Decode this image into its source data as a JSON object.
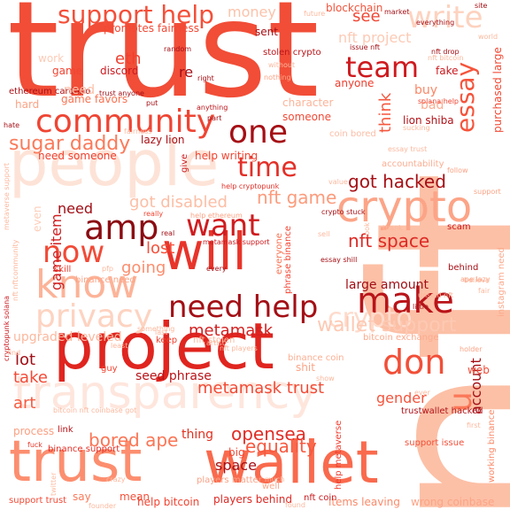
{
  "words": [
    {
      "text": "nft",
      "color": "#fcc0a6",
      "size": 300
    },
    {
      "text": "trust",
      "color": "#f14d37",
      "size": 150
    },
    {
      "text": "people",
      "color": "#fde3d7",
      "size": 70
    },
    {
      "text": "project",
      "color": "#e0251f",
      "size": 72
    },
    {
      "text": "trust",
      "color": "#fc8e6f",
      "size": 64
    },
    {
      "text": "wallet",
      "color": "#f96a4d",
      "size": 66
    },
    {
      "text": "transparency",
      "color": "#fee6dd",
      "size": 52
    },
    {
      "text": "will",
      "color": "#e8342a",
      "size": 58
    },
    {
      "text": "crypto",
      "color": "#fca487",
      "size": 48
    },
    {
      "text": "community",
      "color": "#ef4533",
      "size": 36
    },
    {
      "text": "know",
      "color": "#fcb398",
      "size": 44
    },
    {
      "text": "privacy",
      "color": "#fdd3c1",
      "size": 36
    },
    {
      "text": "make",
      "color": "#b91419",
      "size": 40
    },
    {
      "text": "need help",
      "color": "#a30f15",
      "size": 34
    },
    {
      "text": "amp",
      "color": "#8b0b12",
      "size": 38
    },
    {
      "text": "want",
      "color": "#cf1c1f",
      "size": 34
    },
    {
      "text": "now",
      "color": "#f24a36",
      "size": 34
    },
    {
      "text": "one",
      "color": "#a50f15",
      "size": 36
    },
    {
      "text": "time",
      "color": "#e32f27",
      "size": 30
    },
    {
      "text": "support help",
      "color": "#f44f39",
      "size": 28
    },
    {
      "text": "write",
      "color": "#fdd2bf",
      "size": 34
    },
    {
      "text": "team",
      "color": "#ce1a1e",
      "size": 32
    },
    {
      "text": "essay",
      "color": "#f5543c",
      "size": 28
    },
    {
      "text": "don",
      "color": "#f24f38",
      "size": 38
    },
    {
      "text": "u",
      "color": "#fb7858",
      "size": 36
    },
    {
      "text": "sugar daddy",
      "color": "#fb7a5a",
      "size": 22
    },
    {
      "text": "crypto",
      "color": "#fedbcc",
      "size": 30
    },
    {
      "text": "blockchain",
      "color": "#f4533b",
      "size": 12
    },
    {
      "text": "got hacked",
      "color": "#a60f15",
      "size": 20
    },
    {
      "text": "nft game",
      "color": "#fc9b7c",
      "size": 20
    },
    {
      "text": "nft space",
      "color": "#dd2a25",
      "size": 20
    },
    {
      "text": "got disabled",
      "color": "#fcbea5",
      "size": 18
    },
    {
      "text": "wallet support",
      "color": "#fdc9b3",
      "size": 22
    },
    {
      "text": "metamask",
      "color": "#d42121",
      "size": 18
    },
    {
      "text": "opensea",
      "color": "#e12d26",
      "size": 20
    },
    {
      "text": "equality",
      "color": "#f7593f",
      "size": 20
    },
    {
      "text": "bored ape",
      "color": "#fb7555",
      "size": 20
    },
    {
      "text": "metamask trust",
      "color": "#f24a35",
      "size": 18
    },
    {
      "text": "large amount",
      "color": "#a10e15",
      "size": 14
    },
    {
      "text": "lost",
      "color": "#f4503a",
      "size": 18
    },
    {
      "text": "going",
      "color": "#fc8d6d",
      "size": 18
    },
    {
      "text": "need",
      "color": "#a10e15",
      "size": 16
    },
    {
      "text": "game item",
      "color": "#d01d1f",
      "size": 16
    },
    {
      "text": "lot",
      "color": "#a10e15",
      "size": 18
    },
    {
      "text": "take",
      "color": "#f24a36",
      "size": 18
    },
    {
      "text": "art",
      "color": "#f7593f",
      "size": 18
    },
    {
      "text": "seed phrase",
      "color": "#b81419",
      "size": 14
    },
    {
      "text": "upgraded leveled",
      "color": "#fcb89e",
      "size": 14
    },
    {
      "text": "thing",
      "color": "#e2301f",
      "size": 14
    },
    {
      "text": "space",
      "color": "#a50f15",
      "size": 16
    },
    {
      "text": "gender",
      "color": "#f4543c",
      "size": 16
    },
    {
      "text": "account",
      "color": "#a30f15",
      "size": 16
    },
    {
      "text": "think",
      "color": "#f5573e",
      "size": 18
    },
    {
      "text": "see",
      "color": "#f14633",
      "size": 18
    },
    {
      "text": "money",
      "color": "#fcc2a9",
      "size": 16
    },
    {
      "text": "buy",
      "color": "#fc8767",
      "size": 14
    },
    {
      "text": "bad",
      "color": "#fcad91",
      "size": 14
    },
    {
      "text": "eth",
      "color": "#f0402f",
      "size": 18
    },
    {
      "text": "re",
      "color": "#a30f15",
      "size": 16
    },
    {
      "text": "nft project",
      "color": "#fdcab5",
      "size": 16
    },
    {
      "text": "promotes fairness",
      "color": "#f34935",
      "size": 12
    },
    {
      "text": "game",
      "color": "#f14432",
      "size": 12
    },
    {
      "text": "discord",
      "color": "#cc191e",
      "size": 12
    },
    {
      "text": "game favors",
      "color": "#fb7353",
      "size": 12
    },
    {
      "text": "need someone",
      "color": "#f0402f",
      "size": 12
    },
    {
      "text": "lazy lion",
      "color": "#a81016",
      "size": 12
    },
    {
      "text": "help writing",
      "color": "#f14633",
      "size": 12
    },
    {
      "text": "lion shiba",
      "color": "#b11218",
      "size": 12
    },
    {
      "text": "ethereum cardano",
      "color": "#ad1117",
      "size": 10
    },
    {
      "text": "hard",
      "color": "#fca486",
      "size": 12
    },
    {
      "text": "need",
      "color": "#fcbfa7",
      "size": 14
    },
    {
      "text": "work",
      "color": "#fdcbb6",
      "size": 12
    },
    {
      "text": "stolen crypto",
      "color": "#bd151a",
      "size": 10
    },
    {
      "text": "sent",
      "color": "#a50f15",
      "size": 12
    },
    {
      "text": "fake",
      "color": "#cc191e",
      "size": 12
    },
    {
      "text": "anyone",
      "color": "#ef3c2c",
      "size": 12
    },
    {
      "text": "coin bored",
      "color": "#fcbda4",
      "size": 10
    },
    {
      "text": "character",
      "color": "#fcb499",
      "size": 12
    },
    {
      "text": "someone",
      "color": "#f34a36",
      "size": 12
    },
    {
      "text": "purchased large",
      "color": "#f24a35",
      "size": 12
    },
    {
      "text": "instagram need",
      "color": "#fca98c",
      "size": 10
    },
    {
      "text": "skill",
      "color": "#ea372a",
      "size": 10
    },
    {
      "text": "scam",
      "color": "#cb181d",
      "size": 10
    },
    {
      "text": "behind",
      "color": "#a50f15",
      "size": 10
    },
    {
      "text": "web",
      "color": "#f34935",
      "size": 12
    },
    {
      "text": "trustwallet hacked",
      "color": "#b21218",
      "size": 10
    },
    {
      "text": "support issue",
      "color": "#f44f39",
      "size": 10
    },
    {
      "text": "working binance",
      "color": "#fc8a6a",
      "size": 10
    },
    {
      "text": "wrong coinbase",
      "color": "#fca486",
      "size": 12
    },
    {
      "text": "items leaving",
      "color": "#fc8a6a",
      "size": 12
    },
    {
      "text": "nft coin",
      "color": "#c9181d",
      "size": 10
    },
    {
      "text": "players behind",
      "color": "#dc2924",
      "size": 12
    },
    {
      "text": "help bitcoin",
      "color": "#f14432",
      "size": 12
    },
    {
      "text": "mean",
      "color": "#f4503a",
      "size": 12
    },
    {
      "text": "say",
      "color": "#fb7b5b",
      "size": 12
    },
    {
      "text": "support trust",
      "color": "#f34935",
      "size": 10
    },
    {
      "text": "binance support",
      "color": "#e32f27",
      "size": 10
    },
    {
      "text": "process",
      "color": "#fca082",
      "size": 12
    },
    {
      "text": "link",
      "color": "#b91419",
      "size": 10
    },
    {
      "text": "fuck",
      "color": "#e93529",
      "size": 8
    },
    {
      "text": "big",
      "color": "#f24a35",
      "size": 12
    },
    {
      "text": "players matter",
      "color": "#fca285",
      "size": 10
    },
    {
      "text": "well",
      "color": "#fca78b",
      "size": 10
    },
    {
      "text": "help metaverse",
      "color": "#ee3a2c",
      "size": 10
    },
    {
      "text": "everyone",
      "color": "#fb7151",
      "size": 10
    },
    {
      "text": "phrase binance",
      "color": "#f14432",
      "size": 10
    },
    {
      "text": "binance coin",
      "color": "#fcae92",
      "size": 10
    },
    {
      "text": "bitcoin exchange",
      "color": "#fcaa8d",
      "size": 10
    },
    {
      "text": "keep",
      "color": "#f0402f",
      "size": 10
    },
    {
      "text": "help ethereum",
      "color": "#fca486",
      "size": 8
    },
    {
      "text": "help cryptopunk",
      "color": "#e33028",
      "size": 8
    },
    {
      "text": "crypto stuck",
      "color": "#a91016",
      "size": 8
    },
    {
      "text": "really",
      "color": "#f14432",
      "size": 8
    },
    {
      "text": "metamask support",
      "color": "#cc191e",
      "size": 8
    },
    {
      "text": "guy",
      "color": "#f14432",
      "size": 10
    },
    {
      "text": "shit",
      "color": "#fca486",
      "size": 12
    },
    {
      "text": "binance need",
      "color": "#fca486",
      "size": 10
    },
    {
      "text": "nft stolen",
      "color": "#fcbba1",
      "size": 10
    },
    {
      "text": "accountability",
      "color": "#fcae92",
      "size": 10
    },
    {
      "text": "value",
      "color": "#fcb89e",
      "size": 8
    },
    {
      "text": "give",
      "color": "#cb181d",
      "size": 10
    },
    {
      "text": "even",
      "color": "#fdcdb9",
      "size": 12
    },
    {
      "text": "right",
      "color": "#a50f15",
      "size": 8
    },
    {
      "text": "put",
      "color": "#a50f15",
      "size": 8
    },
    {
      "text": "anything",
      "color": "#bb141a",
      "size": 8
    },
    {
      "text": "issue nft",
      "color": "#a50f15",
      "size": 8
    },
    {
      "text": "solana help",
      "color": "#f14432",
      "size": 8
    },
    {
      "text": "everything",
      "color": "#a50f15",
      "size": 8
    },
    {
      "text": "random",
      "color": "#a50f15",
      "size": 8
    },
    {
      "text": "trust anyone",
      "color": "#a30f15",
      "size": 8
    },
    {
      "text": "unsold nft",
      "color": "#fcb89e",
      "size": 8
    },
    {
      "text": "little",
      "color": "#a50f15",
      "size": 8
    },
    {
      "text": "support",
      "color": "#fca486",
      "size": 8
    },
    {
      "text": "artist",
      "color": "#fcb89e",
      "size": 8
    },
    {
      "text": "nft players",
      "color": "#fcb89e",
      "size": 8
    },
    {
      "text": "cryptopunk solana",
      "color": "#cb181d",
      "size": 8
    },
    {
      "text": "nft nftcommunity",
      "color": "#fcb89e",
      "size": 8
    },
    {
      "text": "metaverse support",
      "color": "#fcb89e",
      "size": 8
    },
    {
      "text": "hate",
      "color": "#a50f15",
      "size": 8
    },
    {
      "text": "nothing",
      "color": "#fca486",
      "size": 8
    },
    {
      "text": "ape lazy",
      "color": "#fca486",
      "size": 8
    },
    {
      "text": "follow",
      "color": "#fca486",
      "size": 8
    },
    {
      "text": "holder",
      "color": "#fca486",
      "size": 8
    },
    {
      "text": "pfp",
      "color": "#fcb89e",
      "size": 8
    },
    {
      "text": "every",
      "color": "#a50f15",
      "size": 8
    },
    {
      "text": "founder",
      "color": "#fcb89e",
      "size": 8
    },
    {
      "text": "twitter",
      "color": "#fcbba1",
      "size": 8
    },
    {
      "text": "crazy",
      "color": "#fcb89e",
      "size": 8
    },
    {
      "text": "found",
      "color": "#fcb89e",
      "size": 8
    },
    {
      "text": "ever",
      "color": "#fcb89e",
      "size": 8
    },
    {
      "text": "future",
      "color": "#fcb89e",
      "size": 8
    },
    {
      "text": "market",
      "color": "#a50f15",
      "size": 8
    },
    {
      "text": "site",
      "color": "#a50f15",
      "size": 8
    },
    {
      "text": "world",
      "color": "#fcb89e",
      "size": 8
    },
    {
      "text": "nft drop",
      "color": "#a50f15",
      "size": 8
    },
    {
      "text": "nft bitcoin",
      "color": "#fcb89e",
      "size": 8
    },
    {
      "text": "thank",
      "color": "#fcb89e",
      "size": 8
    },
    {
      "text": "real",
      "color": "#a50f15",
      "size": 8
    },
    {
      "text": "sell",
      "color": "#fcb89e",
      "size": 8
    },
    {
      "text": "part",
      "color": "#a50f15",
      "size": 8
    },
    {
      "text": "look",
      "color": "#fcb89e",
      "size": 8
    },
    {
      "text": "believe",
      "color": "#fcb89e",
      "size": 8
    },
    {
      "text": "first",
      "color": "#fcb89e",
      "size": 8
    },
    {
      "text": "fair",
      "color": "#fcb89e",
      "size": 8
    },
    {
      "text": "something",
      "color": "#fcb89e",
      "size": 8
    },
    {
      "text": "much",
      "color": "#fcb89e",
      "size": 8
    },
    {
      "text": "essay shill",
      "color": "#a50f15",
      "size": 8
    },
    {
      "text": "bitcoin nft coinbase got",
      "color": "#fcb89e",
      "size": 8
    },
    {
      "text": "fairness",
      "color": "#fcb89e",
      "size": 8
    },
    {
      "text": "sucking",
      "color": "#fcb89e",
      "size": 8
    },
    {
      "text": "find",
      "color": "#fcb89e",
      "size": 8
    },
    {
      "text": "show",
      "color": "#fcb89e",
      "size": 8
    },
    {
      "text": "without",
      "color": "#fcb89e",
      "size": 8
    },
    {
      "text": "last",
      "color": "#fcb89e",
      "size": 8
    },
    {
      "text": "least",
      "color": "#fcb89e",
      "size": 8
    },
    {
      "text": "essay trust",
      "color": "#fcb89e",
      "size": 8
    }
  ]
}
